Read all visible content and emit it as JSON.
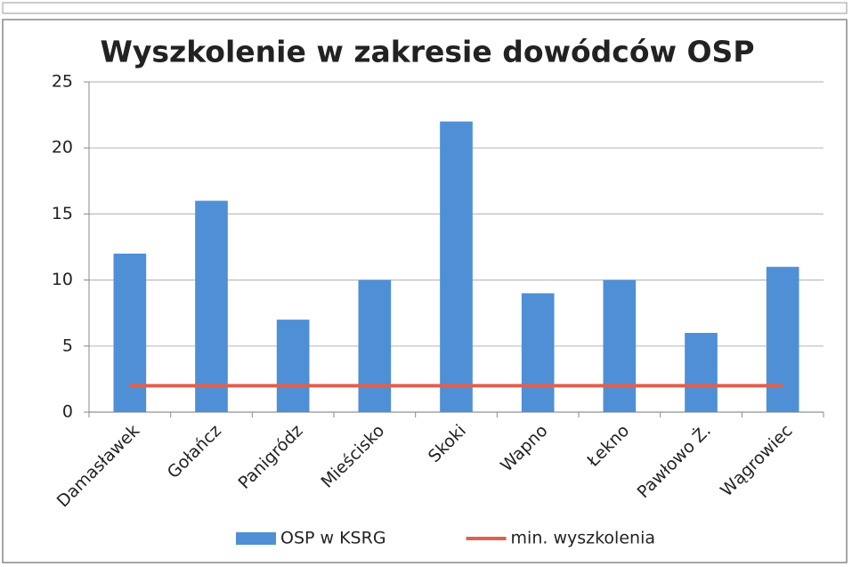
{
  "chart_data": {
    "type": "bar",
    "title": "Wyszkolenie w zakresie dowódców OSP",
    "categories": [
      "Damasławek",
      "Gołańcz",
      "Panigródz",
      "Mieścisko",
      "Skoki",
      "Wapno",
      "Łekno",
      "Pawłowo Ż.",
      "Wągrowiec"
    ],
    "series": [
      {
        "name": "OSP w KSRG",
        "color": "#4f8fd6",
        "values": [
          12,
          16,
          7,
          10,
          22,
          9,
          10,
          6,
          11
        ]
      },
      {
        "name": "min. wyszkolenia",
        "color": "#e0604f",
        "type": "line",
        "values": [
          2,
          2,
          2,
          2,
          2,
          2,
          2,
          2,
          2
        ]
      }
    ],
    "ylim": [
      0,
      25
    ],
    "yticks": [
      0,
      5,
      10,
      15,
      20,
      25
    ],
    "grid": true,
    "legend": "bottom"
  }
}
